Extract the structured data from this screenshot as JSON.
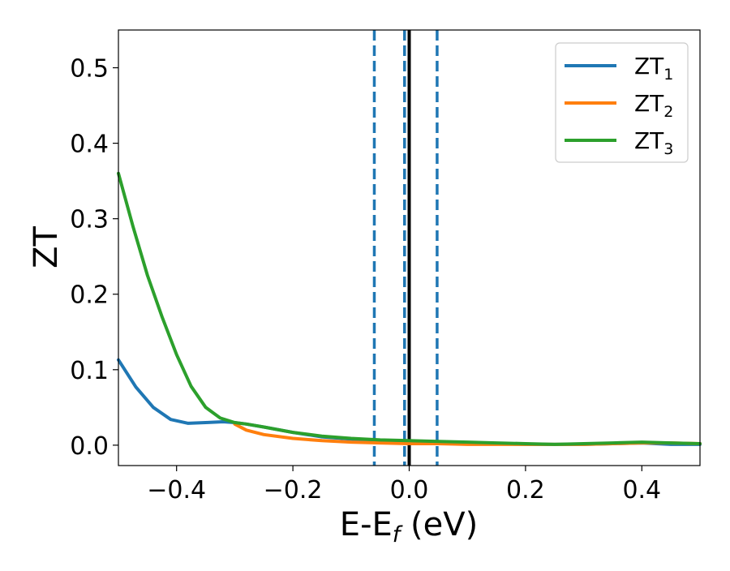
{
  "chart_data": {
    "type": "line",
    "title": "",
    "xlabel": "E-E",
    "xlabel_sub": "f",
    "xlabel_unit": " (eV)",
    "ylabel": "ZT",
    "xlim": [
      -0.5,
      0.5
    ],
    "ylim": [
      -0.027,
      0.55
    ],
    "grid": false,
    "legend_position": "top-right",
    "x_ticks": [
      -0.4,
      -0.2,
      0.0,
      0.2,
      0.4
    ],
    "x_tick_labels": [
      "−0.4",
      "−0.2",
      "0.0",
      "0.2",
      "0.4"
    ],
    "y_ticks": [
      0.0,
      0.1,
      0.2,
      0.3,
      0.4,
      0.5
    ],
    "y_tick_labels": [
      "0.0",
      "0.1",
      "0.2",
      "0.3",
      "0.4",
      "0.5"
    ],
    "vlines": [
      {
        "x": -0.06,
        "style": "dashed",
        "color": "#1f77b4"
      },
      {
        "x": -0.008,
        "style": "dashed",
        "color": "#1f77b4"
      },
      {
        "x": 0.048,
        "style": "dashed",
        "color": "#1f77b4"
      },
      {
        "x": 0.0,
        "style": "solid",
        "color": "#000000"
      }
    ],
    "series": [
      {
        "name": "ZT",
        "sub": "1",
        "color": "#1f77b4",
        "x": [
          -0.5,
          -0.47,
          -0.44,
          -0.41,
          -0.38,
          -0.35,
          -0.32,
          -0.3,
          -0.28,
          -0.25,
          -0.2,
          -0.15,
          -0.1,
          -0.05,
          0.0,
          0.05,
          0.1,
          0.15,
          0.2,
          0.25,
          0.3,
          0.35,
          0.4,
          0.45,
          0.5
        ],
        "y": [
          0.113,
          0.077,
          0.05,
          0.034,
          0.029,
          0.03,
          0.031,
          0.03,
          0.028,
          0.024,
          0.017,
          0.011,
          0.008,
          0.006,
          0.005,
          0.004,
          0.003,
          0.002,
          0.001,
          0.001,
          0.001,
          0.002,
          0.003,
          0.001,
          0.001
        ]
      },
      {
        "name": "ZT",
        "sub": "2",
        "color": "#ff7f0e",
        "x": [
          -0.3,
          -0.28,
          -0.25,
          -0.2,
          -0.15,
          -0.1,
          -0.05,
          0.0,
          0.05,
          0.1,
          0.15,
          0.2,
          0.25,
          0.3,
          0.35,
          0.4,
          0.45,
          0.5
        ],
        "y": [
          0.028,
          0.02,
          0.014,
          0.009,
          0.006,
          0.004,
          0.003,
          0.002,
          0.002,
          0.001,
          0.001,
          0.001,
          0.001,
          0.001,
          0.002,
          0.003,
          0.003,
          0.002
        ]
      },
      {
        "name": "ZT",
        "sub": "3",
        "color": "#2ca02c",
        "x": [
          -0.5,
          -0.475,
          -0.45,
          -0.425,
          -0.4,
          -0.375,
          -0.35,
          -0.325,
          -0.3,
          -0.28,
          -0.25,
          -0.2,
          -0.15,
          -0.1,
          -0.05,
          0.0,
          0.05,
          0.1,
          0.15,
          0.2,
          0.25,
          0.3,
          0.35,
          0.4,
          0.45,
          0.5
        ],
        "y": [
          0.36,
          0.29,
          0.225,
          0.17,
          0.12,
          0.078,
          0.05,
          0.036,
          0.03,
          0.028,
          0.024,
          0.017,
          0.012,
          0.009,
          0.007,
          0.006,
          0.005,
          0.004,
          0.003,
          0.002,
          0.001,
          0.002,
          0.003,
          0.004,
          0.003,
          0.002
        ]
      }
    ]
  }
}
